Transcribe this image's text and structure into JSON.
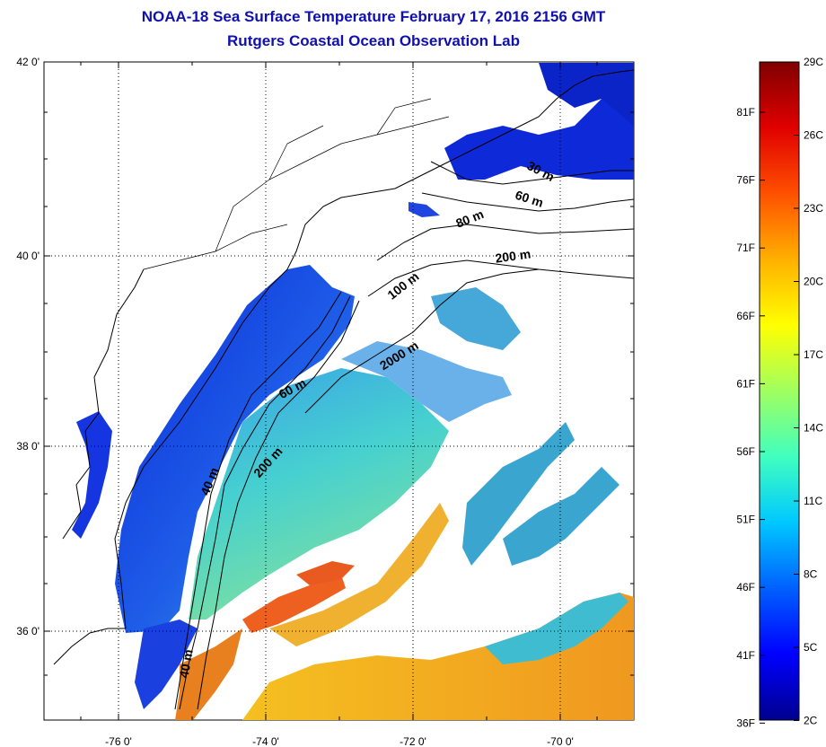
{
  "title": "NOAA-18 Sea Surface Temperature February 17, 2016 2156 GMT",
  "subtitle": "Rutgers Coastal Ocean Observation Lab",
  "axes": {
    "longitude_ticks": [
      "-76 0'",
      "-74 0'",
      "-72 0'",
      "-70 0'"
    ],
    "latitude_ticks": [
      "42 0'",
      "40 0'",
      "38 0'",
      "36 0'"
    ]
  },
  "isobaths": [
    {
      "label": "30 m"
    },
    {
      "label": "60 m"
    },
    {
      "label": "80 m"
    },
    {
      "label": "200 m"
    },
    {
      "label": "100 m"
    },
    {
      "label": "2000 m"
    },
    {
      "label": "60 m"
    },
    {
      "label": "200 m"
    },
    {
      "label": "40 m"
    },
    {
      "label": "40 m"
    }
  ],
  "colorbar": {
    "celsius_labels": [
      "29C",
      "26C",
      "23C",
      "20C",
      "17C",
      "14C",
      "11C",
      "8C",
      "5C",
      "2C"
    ],
    "fahrenheit_labels": [
      "81F",
      "76F",
      "71F",
      "66F",
      "61F",
      "56F",
      "51F",
      "46F",
      "41F",
      "36F"
    ],
    "colors": [
      "#00008f",
      "#0000ff",
      "#0060ff",
      "#00c8ff",
      "#40ffbf",
      "#a0ff60",
      "#ffff00",
      "#ffb000",
      "#ff5000",
      "#e00000",
      "#800000"
    ]
  },
  "colors": {
    "title": "#1010b0",
    "land": "#ffffff",
    "coastline": "#000000",
    "cold_water": "#1530e0",
    "mid_water": "#3cc8d8",
    "warm_water": "#f0a020"
  }
}
